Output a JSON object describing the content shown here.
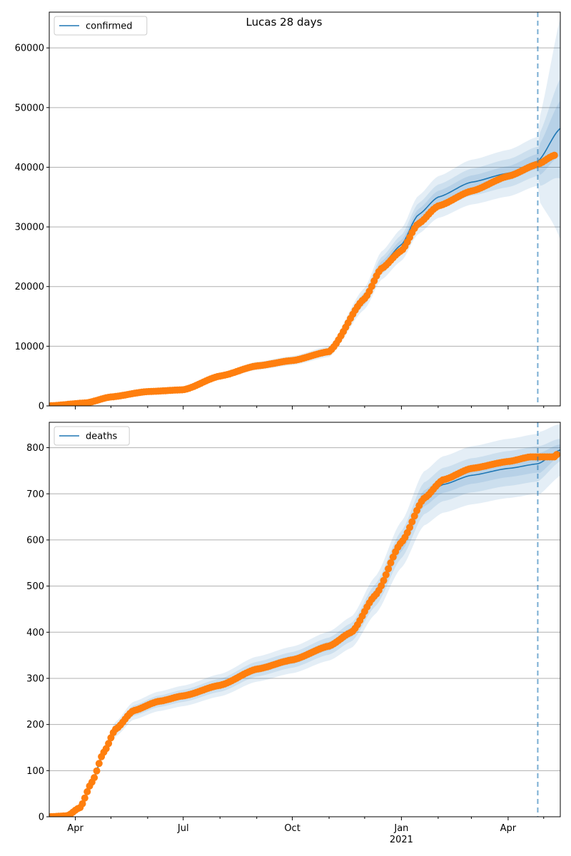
{
  "figure": {
    "title": "Lucas 28 days"
  },
  "colors": {
    "model": "#1f77b4",
    "observed": "#ff7f0e",
    "band": "#1f77b4",
    "grid": "#b0b0b0"
  },
  "x_axis": {
    "ticks": [
      {
        "date": "2020-04-01",
        "label": "Apr",
        "sub": ""
      },
      {
        "date": "2020-07-01",
        "label": "Jul",
        "sub": ""
      },
      {
        "date": "2020-10-01",
        "label": "Oct",
        "sub": ""
      },
      {
        "date": "2021-01-01",
        "label": "Jan",
        "sub": "2021"
      },
      {
        "date": "2021-04-01",
        "label": "Apr",
        "sub": ""
      }
    ],
    "minor_ticks": [
      "2020-05-01",
      "2020-06-01",
      "2020-08-01",
      "2020-09-01",
      "2020-11-01",
      "2020-12-01",
      "2021-02-01",
      "2021-03-01",
      "2021-05-01"
    ],
    "range": [
      "2020-03-10",
      "2021-05-15"
    ]
  },
  "chart_data": [
    {
      "type": "line",
      "legend": "confirmed",
      "legend_position": "top-left",
      "grid": true,
      "ylim": [
        0,
        66000
      ],
      "yticks": [
        0,
        10000,
        20000,
        30000,
        40000,
        50000,
        60000
      ],
      "forecast_start": "2021-04-26",
      "model": [
        [
          "2020-03-10",
          0
        ],
        [
          "2020-04-10",
          500
        ],
        [
          "2020-05-01",
          1500
        ],
        [
          "2020-06-01",
          2400
        ],
        [
          "2020-07-01",
          2700
        ],
        [
          "2020-08-01",
          5000
        ],
        [
          "2020-09-01",
          6700
        ],
        [
          "2020-10-01",
          7600
        ],
        [
          "2020-11-01",
          9100
        ],
        [
          "2020-12-01",
          18000
        ],
        [
          "2020-12-15",
          23500
        ],
        [
          "2021-01-01",
          27000
        ],
        [
          "2021-01-15",
          32000
        ],
        [
          "2021-02-01",
          35000
        ],
        [
          "2021-03-01",
          37500
        ],
        [
          "2021-04-01",
          39000
        ],
        [
          "2021-04-26",
          41000
        ],
        [
          "2021-05-15",
          46500
        ]
      ],
      "band_relative": [
        0.03,
        0.06,
        0.1
      ],
      "band_width_forecast": [
        [
          0.06,
          0.1,
          0.15
        ],
        [
          0.1,
          0.18,
          0.4
        ]
      ],
      "observed": [
        [
          "2020-03-10",
          0
        ],
        [
          "2020-04-10",
          500
        ],
        [
          "2020-05-01",
          1500
        ],
        [
          "2020-06-01",
          2400
        ],
        [
          "2020-07-01",
          2700
        ],
        [
          "2020-08-01",
          5000
        ],
        [
          "2020-09-01",
          6700
        ],
        [
          "2020-10-01",
          7600
        ],
        [
          "2020-11-01",
          9100
        ],
        [
          "2020-12-01",
          18000
        ],
        [
          "2020-12-15",
          23000
        ],
        [
          "2021-01-01",
          26000
        ],
        [
          "2021-01-15",
          30500
        ],
        [
          "2021-02-01",
          33500
        ],
        [
          "2021-03-01",
          36000
        ],
        [
          "2021-04-01",
          38500
        ],
        [
          "2021-04-26",
          40500
        ],
        [
          "2021-05-10",
          42000
        ]
      ]
    },
    {
      "type": "line",
      "legend": "deaths",
      "legend_position": "top-left",
      "grid": true,
      "ylim": [
        0,
        855
      ],
      "yticks": [
        0,
        100,
        200,
        300,
        400,
        500,
        600,
        700,
        800
      ],
      "forecast_start": "2021-04-26",
      "model": [
        [
          "2020-03-10",
          0
        ],
        [
          "2020-03-25",
          2
        ],
        [
          "2020-04-05",
          20
        ],
        [
          "2020-04-15",
          75
        ],
        [
          "2020-04-25",
          140
        ],
        [
          "2020-05-05",
          190
        ],
        [
          "2020-05-20",
          230
        ],
        [
          "2020-06-10",
          250
        ],
        [
          "2020-07-01",
          262
        ],
        [
          "2020-08-01",
          285
        ],
        [
          "2020-09-01",
          320
        ],
        [
          "2020-10-01",
          340
        ],
        [
          "2020-11-01",
          370
        ],
        [
          "2020-11-20",
          400
        ],
        [
          "2020-12-10",
          480
        ],
        [
          "2021-01-01",
          590
        ],
        [
          "2021-01-20",
          690
        ],
        [
          "2021-02-05",
          720
        ],
        [
          "2021-03-01",
          740
        ],
        [
          "2021-04-01",
          755
        ],
        [
          "2021-04-26",
          765
        ],
        [
          "2021-05-15",
          795
        ]
      ],
      "band_relative": [
        0.025,
        0.05,
        0.085
      ],
      "band_width_forecast": [
        [
          0.03,
          0.05,
          0.09
        ],
        [
          0.015,
          0.03,
          0.07
        ]
      ],
      "observed": [
        [
          "2020-03-10",
          0
        ],
        [
          "2020-03-25",
          2
        ],
        [
          "2020-04-05",
          20
        ],
        [
          "2020-04-15",
          75
        ],
        [
          "2020-04-25",
          140
        ],
        [
          "2020-05-05",
          190
        ],
        [
          "2020-05-20",
          230
        ],
        [
          "2020-06-10",
          250
        ],
        [
          "2020-07-01",
          262
        ],
        [
          "2020-08-01",
          285
        ],
        [
          "2020-09-01",
          320
        ],
        [
          "2020-10-01",
          340
        ],
        [
          "2020-11-01",
          370
        ],
        [
          "2020-11-20",
          400
        ],
        [
          "2020-12-10",
          480
        ],
        [
          "2021-01-01",
          595
        ],
        [
          "2021-01-20",
          690
        ],
        [
          "2021-02-05",
          730
        ],
        [
          "2021-03-01",
          755
        ],
        [
          "2021-04-01",
          770
        ],
        [
          "2021-04-20",
          780
        ],
        [
          "2021-05-10",
          780
        ],
        [
          "2021-05-12",
          785
        ]
      ]
    }
  ]
}
